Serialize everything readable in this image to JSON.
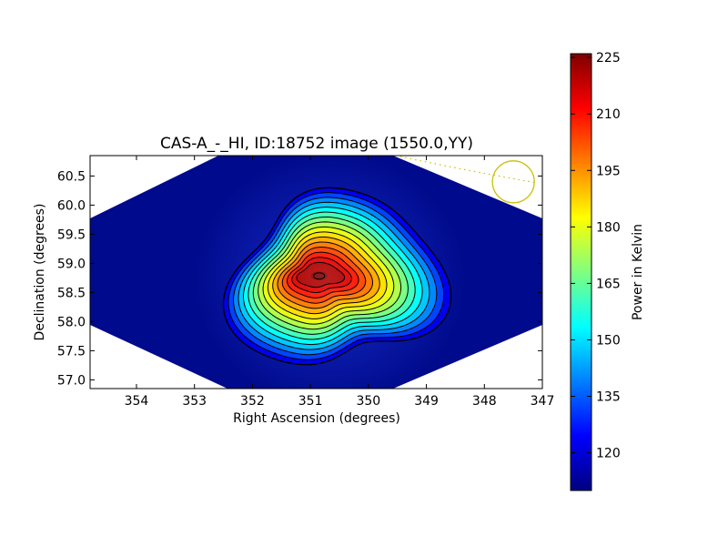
{
  "chart_data": {
    "type": "heatmap",
    "title": "CAS-A_-_HI, ID:18752 image (1550.0,YY)",
    "xlabel": "Right Ascension (degrees)",
    "ylabel": "Declination (degrees)",
    "xlim": [
      354.8,
      347.0
    ],
    "ylim": [
      56.85,
      60.85
    ],
    "x_ticks": [
      "354",
      "353",
      "352",
      "351",
      "350",
      "349",
      "348",
      "347"
    ],
    "x_tick_values": [
      354,
      353,
      352,
      351,
      350,
      349,
      348,
      347
    ],
    "y_ticks": [
      "57.0",
      "57.5",
      "58.0",
      "58.5",
      "59.0",
      "59.5",
      "60.0",
      "60.5"
    ],
    "y_tick_values": [
      57.0,
      57.5,
      58.0,
      58.5,
      59.0,
      59.5,
      60.0,
      60.5
    ],
    "source_peak": {
      "ra": 350.85,
      "dec": 58.8,
      "peak": 225,
      "background": 110
    },
    "contours": {
      "count": 16,
      "color": "#000000"
    },
    "beam_marker": {
      "ra": 347.5,
      "dec": 60.4,
      "color": "#c8c000"
    },
    "colorbar": {
      "label": "Power in Kelvin",
      "vmin": 110,
      "vmax": 226,
      "ticks": [
        "120",
        "135",
        "150",
        "165",
        "180",
        "195",
        "210",
        "225"
      ],
      "tick_values": [
        120,
        135,
        150,
        165,
        180,
        195,
        210,
        225
      ],
      "colormap": "jet"
    },
    "grid": false
  }
}
